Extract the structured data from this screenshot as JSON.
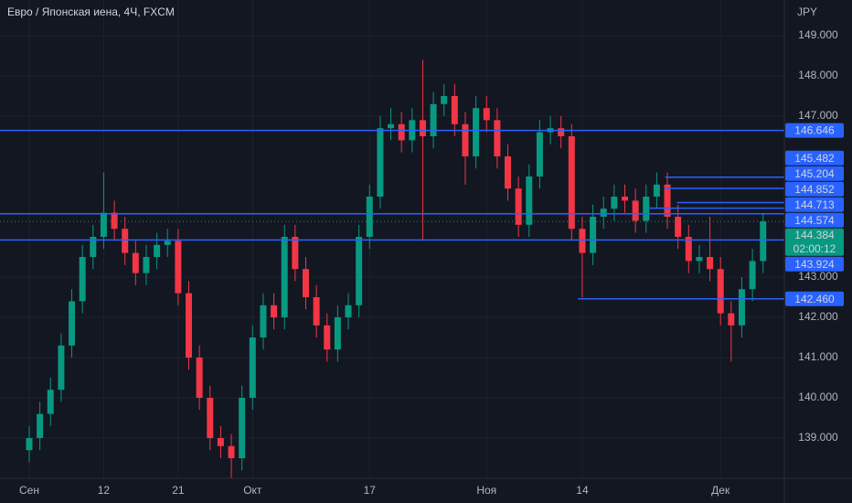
{
  "chart_data": {
    "type": "candlestick",
    "title": "Евро / Японская иена, 4Ч, FXCM",
    "currency": "JPY",
    "up_color": "#089981",
    "down_color": "#f23645",
    "level_color": "#2962ff",
    "open": [
      138.7,
      139.0,
      139.6,
      140.2,
      141.3,
      142.4,
      143.5,
      144.0,
      144.6,
      144.2,
      143.6,
      143.1,
      143.5,
      143.8,
      143.9,
      142.6,
      141.0,
      140.0,
      139.0,
      138.8,
      138.5,
      140.0,
      141.5,
      142.3,
      142.0,
      144.0,
      143.2,
      142.5,
      141.8,
      141.2,
      142.0,
      142.3,
      144.0,
      145.0,
      146.7,
      146.8,
      146.4,
      146.9,
      146.5,
      147.3,
      147.5,
      146.8,
      146.0,
      147.2,
      146.9,
      146.0,
      145.2,
      144.3,
      145.5,
      146.6,
      146.7,
      146.5,
      144.2,
      143.6,
      144.5,
      144.7,
      145.0,
      144.9,
      144.4,
      145.0,
      145.3,
      144.5,
      144.0,
      143.4,
      143.5,
      143.2,
      142.1,
      141.8,
      142.7,
      143.4
    ],
    "high": [
      139.3,
      139.9,
      140.5,
      141.6,
      142.7,
      143.8,
      144.3,
      145.6,
      144.9,
      144.5,
      143.9,
      143.8,
      144.1,
      144.2,
      144.2,
      142.9,
      141.3,
      140.3,
      139.3,
      139.1,
      140.3,
      141.8,
      142.6,
      142.6,
      144.3,
      144.3,
      143.5,
      142.8,
      142.1,
      142.3,
      142.6,
      144.3,
      145.3,
      147.0,
      147.2,
      147.1,
      147.2,
      148.4,
      147.6,
      147.8,
      147.8,
      147.1,
      147.5,
      147.5,
      147.2,
      146.3,
      145.5,
      145.8,
      146.9,
      147.0,
      147.0,
      146.8,
      144.5,
      144.8,
      145.0,
      145.3,
      145.3,
      145.2,
      145.3,
      145.6,
      145.6,
      144.8,
      144.3,
      143.8,
      144.5,
      143.5,
      142.4,
      143.0,
      143.7,
      144.6
    ],
    "low": [
      138.4,
      138.7,
      139.3,
      139.9,
      141.0,
      142.1,
      143.2,
      143.7,
      143.9,
      143.3,
      142.8,
      142.8,
      143.2,
      143.5,
      142.3,
      140.7,
      139.7,
      138.7,
      138.5,
      138.0,
      138.2,
      139.7,
      141.2,
      141.7,
      141.7,
      142.9,
      142.2,
      141.5,
      140.9,
      140.9,
      141.7,
      142.0,
      143.7,
      144.7,
      146.4,
      146.1,
      146.1,
      143.9,
      146.2,
      147.0,
      146.5,
      145.3,
      145.7,
      146.6,
      145.7,
      144.9,
      144.0,
      144.0,
      145.2,
      146.3,
      146.2,
      143.9,
      142.5,
      143.3,
      144.2,
      144.4,
      144.6,
      144.1,
      144.1,
      144.7,
      144.2,
      143.7,
      143.1,
      143.1,
      142.9,
      141.8,
      140.9,
      141.5,
      142.4,
      143.1
    ],
    "close": [
      139.0,
      139.6,
      140.2,
      141.3,
      142.4,
      143.5,
      144.0,
      144.6,
      144.2,
      143.6,
      143.1,
      143.5,
      143.8,
      143.9,
      142.6,
      141.0,
      140.0,
      139.0,
      138.8,
      138.5,
      140.0,
      141.5,
      142.3,
      142.0,
      144.0,
      143.2,
      142.5,
      141.8,
      141.2,
      142.0,
      142.3,
      144.0,
      145.0,
      146.7,
      146.8,
      146.4,
      146.9,
      146.5,
      147.3,
      147.5,
      146.8,
      146.0,
      147.2,
      146.9,
      146.0,
      145.2,
      144.3,
      145.5,
      146.6,
      146.7,
      146.5,
      144.2,
      143.6,
      144.5,
      144.7,
      145.0,
      144.9,
      144.4,
      145.0,
      145.3,
      144.5,
      144.0,
      143.4,
      143.5,
      143.2,
      142.1,
      141.8,
      142.7,
      143.4,
      144.384
    ],
    "xlim": [
      -2.75,
      71
    ],
    "xticks": [
      {
        "value": 0,
        "label": "Сен"
      },
      {
        "value": 7,
        "label": "12"
      },
      {
        "value": 14,
        "label": "21"
      },
      {
        "value": 21,
        "label": "Окт"
      },
      {
        "value": 32,
        "label": "17"
      },
      {
        "value": 43,
        "label": "Ноя"
      },
      {
        "value": 52,
        "label": "14"
      },
      {
        "value": 65,
        "label": "Дек"
      }
    ],
    "ylim": [
      138.0,
      149.886
    ],
    "yticks": [
      {
        "value": 139,
        "label": "139.000"
      },
      {
        "value": 140,
        "label": "140.000"
      },
      {
        "value": 141,
        "label": "141.000"
      },
      {
        "value": 142,
        "label": "142.000"
      },
      {
        "value": 143,
        "label": "143.000"
      },
      {
        "value": 147,
        "label": "147.000"
      },
      {
        "value": 148,
        "label": "148.000"
      },
      {
        "value": 149,
        "label": "149.000"
      }
    ],
    "grid": true,
    "levels": [
      {
        "value": 146.646,
        "label": "146.646"
      },
      {
        "value": 145.482,
        "label": "145.482",
        "from": 59.8
      },
      {
        "value": 145.204,
        "label": "145.204",
        "from": 59.8
      },
      {
        "value": 144.852,
        "label": "144.852",
        "from": 60.9
      },
      {
        "value": 144.713,
        "label": "144.713",
        "from": 58.3
      },
      {
        "value": 144.574,
        "label": "144.574"
      },
      {
        "value": 143.924,
        "label": "143.924"
      },
      {
        "value": 142.46,
        "label": "142.460",
        "from": 51.6
      }
    ],
    "last_price": {
      "value": 144.384,
      "label": "144.384",
      "countdown": "02:00:12",
      "color": "#089981"
    }
  }
}
